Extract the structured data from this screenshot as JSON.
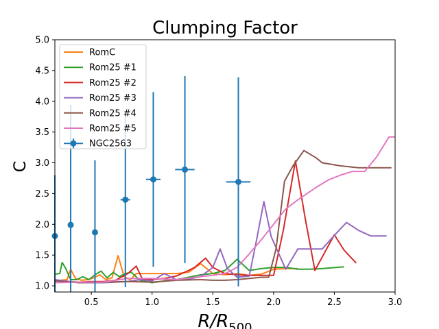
{
  "chart_data": {
    "type": "line",
    "title": "Clumping Factor",
    "xlabel_main": "R/R",
    "xlabel_sub": "500",
    "ylabel": "C",
    "xlim": [
      0.2,
      3.0
    ],
    "ylim": [
      0.9,
      5.0
    ],
    "xticks": [
      "0.5",
      "1.0",
      "1.5",
      "2.0",
      "2.5",
      "3.0"
    ],
    "yticks": [
      "1.0",
      "1.5",
      "2.0",
      "2.5",
      "3.0",
      "3.5",
      "4.0",
      "4.5",
      "5.0"
    ],
    "grid": false,
    "legend_position": "top-left",
    "series": [
      {
        "name": "RomC",
        "color": "#ff7f0e",
        "x": [
          0.2,
          0.25,
          0.3,
          0.33,
          0.37,
          0.42,
          0.47,
          0.52,
          0.57,
          0.62,
          0.67,
          0.72,
          0.77,
          0.82,
          0.87,
          0.92,
          0.97,
          1.02,
          1.1,
          1.2,
          1.3,
          1.4,
          1.5,
          1.6,
          1.7,
          1.8,
          1.9,
          2.0,
          2.1,
          2.2
        ],
        "y": [
          1.07,
          1.09,
          1.1,
          1.27,
          1.12,
          1.09,
          1.1,
          1.13,
          1.18,
          1.1,
          1.13,
          1.49,
          1.15,
          1.1,
          1.2,
          1.2,
          1.2,
          1.2,
          1.2,
          1.2,
          1.22,
          1.36,
          1.2,
          1.18,
          1.2,
          1.17,
          1.19,
          1.27,
          1.28,
          1.28
        ]
      },
      {
        "name": "Rom25 #1",
        "color": "#2ca02c",
        "x": [
          0.2,
          0.24,
          0.26,
          0.29,
          0.33,
          0.38,
          0.43,
          0.48,
          0.53,
          0.58,
          0.63,
          0.68,
          0.73,
          0.78,
          0.83,
          0.9,
          1.0,
          1.1,
          1.2,
          1.3,
          1.4,
          1.5,
          1.6,
          1.7,
          1.8,
          1.9,
          2.0,
          2.1,
          2.2,
          2.3,
          2.4,
          2.58
        ],
        "y": [
          1.19,
          1.2,
          1.38,
          1.28,
          1.1,
          1.1,
          1.15,
          1.1,
          1.18,
          1.24,
          1.13,
          1.22,
          1.15,
          1.2,
          1.22,
          1.09,
          1.05,
          1.08,
          1.1,
          1.14,
          1.18,
          1.2,
          1.25,
          1.43,
          1.25,
          1.28,
          1.3,
          1.3,
          1.27,
          1.27,
          1.28,
          1.31
        ]
      },
      {
        "name": "Rom25 #2",
        "color": "#d62728",
        "x": [
          0.2,
          0.3,
          0.4,
          0.5,
          0.6,
          0.7,
          0.8,
          0.87,
          0.92,
          1.0,
          1.1,
          1.2,
          1.3,
          1.35,
          1.44,
          1.5,
          1.6,
          1.7,
          1.8,
          1.9,
          2.0,
          2.08,
          2.18,
          2.26,
          2.34,
          2.5,
          2.58,
          2.68
        ],
        "y": [
          1.08,
          1.07,
          1.06,
          1.07,
          1.07,
          1.09,
          1.2,
          1.32,
          1.11,
          1.1,
          1.12,
          1.16,
          1.25,
          1.3,
          1.45,
          1.3,
          1.2,
          1.18,
          1.17,
          1.17,
          1.17,
          1.9,
          3.03,
          2.1,
          1.25,
          1.83,
          1.58,
          1.37
        ]
      },
      {
        "name": "Rom25 #3",
        "color": "#9467bd",
        "x": [
          0.2,
          0.4,
          0.6,
          0.8,
          0.9,
          1.0,
          1.1,
          1.2,
          1.3,
          1.4,
          1.5,
          1.56,
          1.62,
          1.7,
          1.8,
          1.86,
          1.92,
          1.98,
          2.1,
          2.2,
          2.3,
          2.4,
          2.5,
          2.6,
          2.7,
          2.8,
          2.93
        ],
        "y": [
          1.1,
          1.05,
          1.05,
          1.07,
          1.1,
          1.08,
          1.2,
          1.1,
          1.11,
          1.15,
          1.3,
          1.6,
          1.28,
          1.14,
          1.16,
          1.75,
          2.37,
          1.8,
          1.27,
          1.6,
          1.6,
          1.6,
          1.82,
          2.03,
          1.9,
          1.81,
          1.81
        ]
      },
      {
        "name": "Rom25 #4",
        "color": "#8c564b",
        "x": [
          0.2,
          0.4,
          0.6,
          0.8,
          1.0,
          1.2,
          1.4,
          1.5,
          1.6,
          1.7,
          1.8,
          1.9,
          1.96,
          2.02,
          2.09,
          2.16,
          2.25,
          2.35,
          2.4,
          2.55,
          2.7,
          2.8,
          2.97
        ],
        "y": [
          1.08,
          1.05,
          1.06,
          1.07,
          1.06,
          1.09,
          1.1,
          1.09,
          1.09,
          1.1,
          1.12,
          1.14,
          1.14,
          1.6,
          2.7,
          2.95,
          3.2,
          3.08,
          3.0,
          2.95,
          2.92,
          2.92,
          2.92
        ]
      },
      {
        "name": "Rom25 #5",
        "color": "#e377c2",
        "x": [
          0.2,
          0.4,
          0.6,
          0.8,
          1.0,
          1.2,
          1.4,
          1.5,
          1.6,
          1.7,
          1.8,
          1.9,
          2.0,
          2.1,
          2.2,
          2.35,
          2.45,
          2.55,
          2.65,
          2.75,
          2.85,
          2.95,
          3.0
        ],
        "y": [
          1.05,
          1.06,
          1.06,
          1.12,
          1.12,
          1.1,
          1.15,
          1.17,
          1.2,
          1.3,
          1.52,
          1.75,
          2.0,
          2.25,
          2.4,
          2.6,
          2.72,
          2.8,
          2.86,
          2.86,
          3.1,
          3.42,
          3.42
        ]
      }
    ],
    "errorbar_series": {
      "name": "NGC2563",
      "color": "#1f77b4",
      "points": [
        {
          "x": 0.2,
          "y": 1.81,
          "xerr": 0.005,
          "yerr": 0.99
        },
        {
          "x": 0.33,
          "y": 1.99,
          "xerr": 0.01,
          "yerr": 1.95
        },
        {
          "x": 0.53,
          "y": 1.87,
          "xerr": 0.02,
          "yerr": 1.17
        },
        {
          "x": 0.78,
          "y": 2.4,
          "xerr": 0.04,
          "yerr": 1.42
        },
        {
          "x": 1.01,
          "y": 2.73,
          "xerr": 0.06,
          "yerr": 1.42
        },
        {
          "x": 1.27,
          "y": 2.89,
          "xerr": 0.08,
          "yerr": 1.52
        },
        {
          "x": 1.71,
          "y": 2.69,
          "xerr": 0.1,
          "yerr": 1.7
        }
      ]
    }
  }
}
